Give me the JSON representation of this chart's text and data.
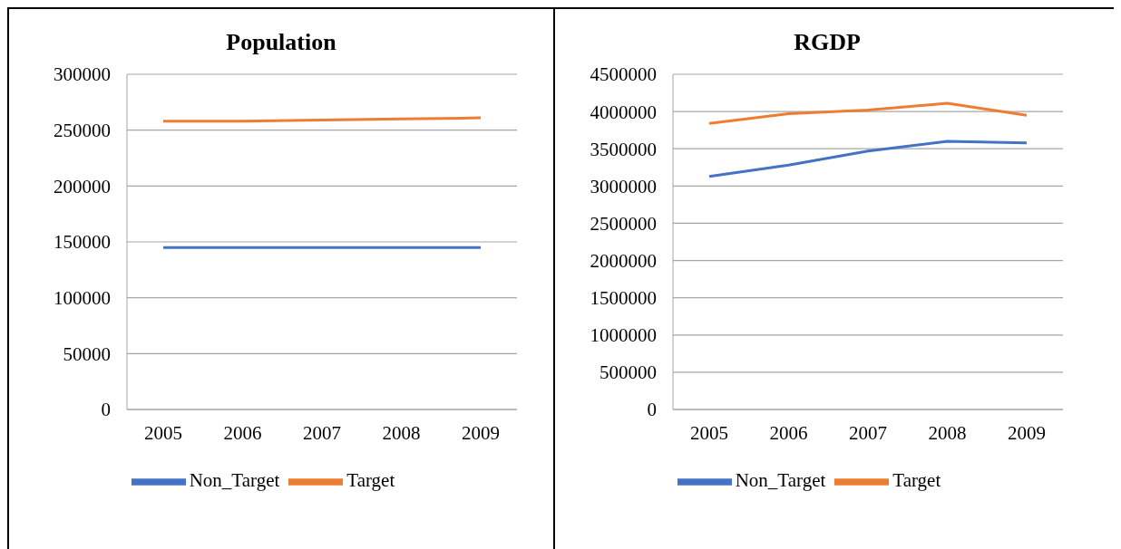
{
  "chart_data": [
    {
      "type": "line",
      "title": "Population",
      "categories": [
        "2005",
        "2006",
        "2007",
        "2008",
        "2009"
      ],
      "series": [
        {
          "name": "Non_Target",
          "color": "#4472c4",
          "values": [
            145000,
            145000,
            145000,
            145000,
            145000
          ]
        },
        {
          "name": "Target",
          "color": "#ed7d31",
          "values": [
            258000,
            258000,
            259000,
            260000,
            261000
          ]
        }
      ],
      "ylim": [
        0,
        300000
      ],
      "yticks": [
        0,
        50000,
        100000,
        150000,
        200000,
        250000,
        300000
      ],
      "grid": "y",
      "legend": "bottom",
      "marker": "none",
      "line_style": "solid"
    },
    {
      "type": "line",
      "title": "RGDP",
      "categories": [
        "2005",
        "2006",
        "2007",
        "2008",
        "2009"
      ],
      "series": [
        {
          "name": "Non_Target",
          "color": "#4472c4",
          "values": [
            3130000,
            3280000,
            3470000,
            3600000,
            3580000
          ]
        },
        {
          "name": "Target",
          "color": "#ed7d31",
          "values": [
            3840000,
            3970000,
            4020000,
            4110000,
            3950000
          ]
        }
      ],
      "ylim": [
        0,
        4500000
      ],
      "yticks": [
        0,
        500000,
        1000000,
        1500000,
        2000000,
        2500000,
        3000000,
        3500000,
        4000000,
        4500000
      ],
      "grid": "y",
      "legend": "bottom",
      "marker": "none",
      "line_style": "solid"
    }
  ]
}
